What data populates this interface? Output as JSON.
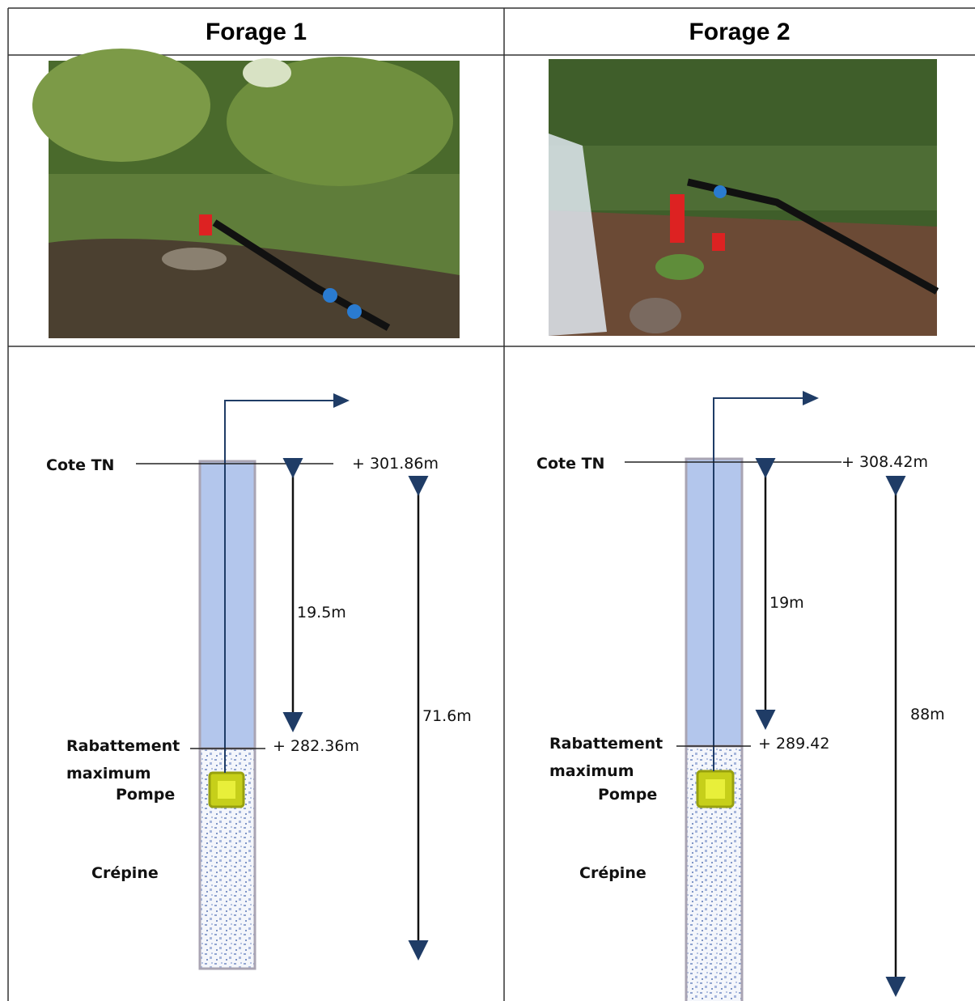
{
  "columns": [
    {
      "title": "Forage 1",
      "diagram": {
        "ground_label": "Cote TN",
        "ground_level": "+ 301.86m",
        "drawdown_depth": "19.5m",
        "total_depth": "71.6m",
        "drawdown_label": "Rabattement maximum",
        "drawdown_level": "+ 282.36m",
        "pump_label": "Pompe",
        "screen_label": "Crépine"
      }
    },
    {
      "title": "Forage 2",
      "diagram": {
        "ground_label": "Cote TN",
        "ground_level": "+ 308.42m",
        "drawdown_depth": "19m",
        "total_depth": "88m",
        "drawdown_label": "Rabattement maximum",
        "drawdown_level": "+ 289.42",
        "pump_label": "Pompe",
        "screen_label": "Crépine"
      }
    }
  ]
}
